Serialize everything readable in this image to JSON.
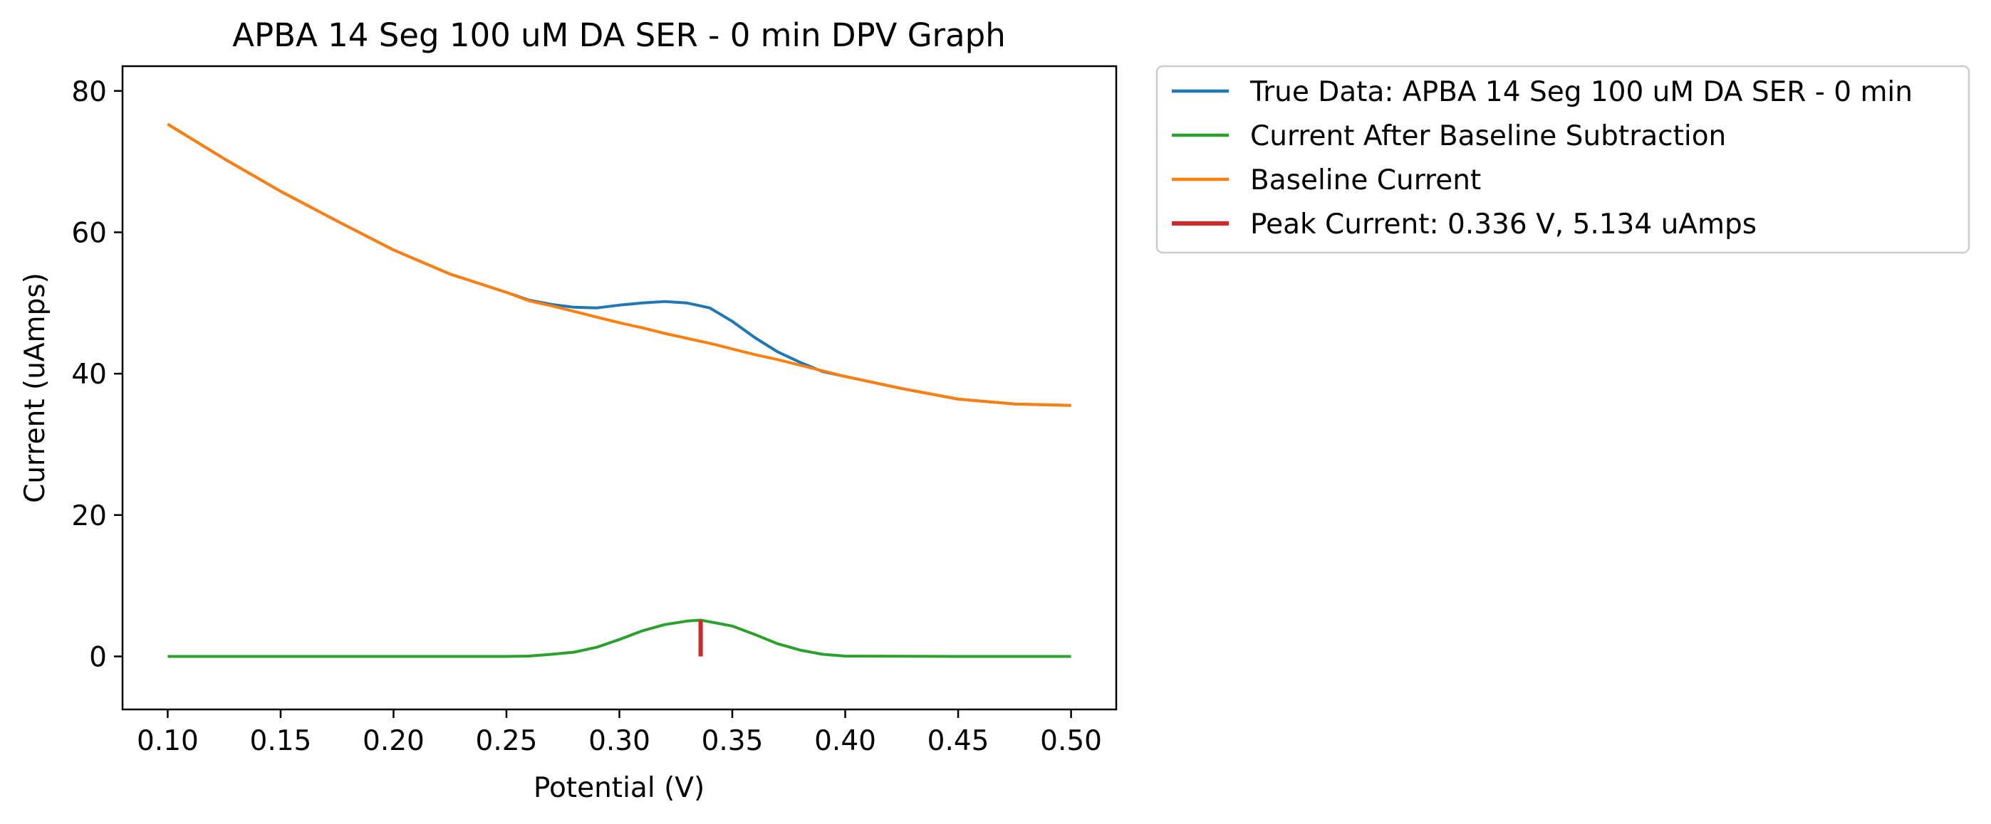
{
  "chart_data": {
    "type": "line",
    "title": "APBA 14 Seg 100 uM DA SER - 0 min DPV Graph",
    "xlabel": "Potential (V)",
    "ylabel": "Current (uAmps)",
    "xlim": [
      0.08,
      0.52
    ],
    "ylim": [
      -7.5,
      83.5
    ],
    "xticks": [
      0.1,
      0.15,
      0.2,
      0.25,
      0.3,
      0.35,
      0.4,
      0.45,
      0.5
    ],
    "xtick_labels": [
      "0.10",
      "0.15",
      "0.20",
      "0.25",
      "0.30",
      "0.35",
      "0.40",
      "0.45",
      "0.50"
    ],
    "yticks": [
      0,
      20,
      40,
      60,
      80
    ],
    "ytick_labels": [
      "0",
      "20",
      "40",
      "60",
      "80"
    ],
    "grid": false,
    "legend_position": "outside-upper-right",
    "series": [
      {
        "name": "True Data: APBA 14 Seg 100 uM DA SER - 0 min",
        "color": "#1f77b4",
        "x": [
          0.1,
          0.125,
          0.15,
          0.175,
          0.2,
          0.225,
          0.25,
          0.26,
          0.27,
          0.28,
          0.29,
          0.3,
          0.31,
          0.32,
          0.33,
          0.34,
          0.35,
          0.36,
          0.37,
          0.38,
          0.39,
          0.4,
          0.425,
          0.45,
          0.475,
          0.5
        ],
        "y": [
          75.3,
          70.4,
          65.8,
          61.6,
          57.5,
          54.1,
          51.5,
          50.4,
          49.8,
          49.4,
          49.3,
          49.7,
          50.0,
          50.2,
          50.0,
          49.3,
          47.4,
          45.1,
          43.1,
          41.6,
          40.3,
          39.6,
          37.9,
          36.4,
          35.7,
          35.5
        ]
      },
      {
        "name": "Current After Baseline Subtraction",
        "color": "#2ca02c",
        "x": [
          0.1,
          0.15,
          0.2,
          0.25,
          0.26,
          0.27,
          0.28,
          0.29,
          0.3,
          0.31,
          0.32,
          0.33,
          0.336,
          0.34,
          0.35,
          0.36,
          0.37,
          0.38,
          0.39,
          0.4,
          0.45,
          0.5
        ],
        "y": [
          0,
          0,
          0,
          0,
          0.05,
          0.3,
          0.6,
          1.3,
          2.4,
          3.6,
          4.5,
          5.0,
          5.134,
          4.9,
          4.3,
          3.1,
          1.8,
          0.9,
          0.3,
          0.05,
          0,
          0
        ]
      },
      {
        "name": "Baseline Current",
        "color": "#ff7f0e",
        "x": [
          0.1,
          0.125,
          0.15,
          0.175,
          0.2,
          0.225,
          0.25,
          0.26,
          0.27,
          0.28,
          0.29,
          0.3,
          0.31,
          0.32,
          0.33,
          0.34,
          0.35,
          0.36,
          0.37,
          0.38,
          0.39,
          0.4,
          0.425,
          0.45,
          0.475,
          0.5
        ],
        "y": [
          75.3,
          70.4,
          65.8,
          61.6,
          57.5,
          54.1,
          51.5,
          50.3,
          49.6,
          48.8,
          48.0,
          47.2,
          46.5,
          45.7,
          45.0,
          44.3,
          43.5,
          42.7,
          42.0,
          41.2,
          40.4,
          39.6,
          37.9,
          36.4,
          35.7,
          35.5
        ]
      },
      {
        "name": "Peak Current: 0.336 V, 5.134 uAmps",
        "color": "#d62728",
        "x": [
          0.336,
          0.336
        ],
        "y": [
          0,
          5.134
        ]
      }
    ]
  }
}
